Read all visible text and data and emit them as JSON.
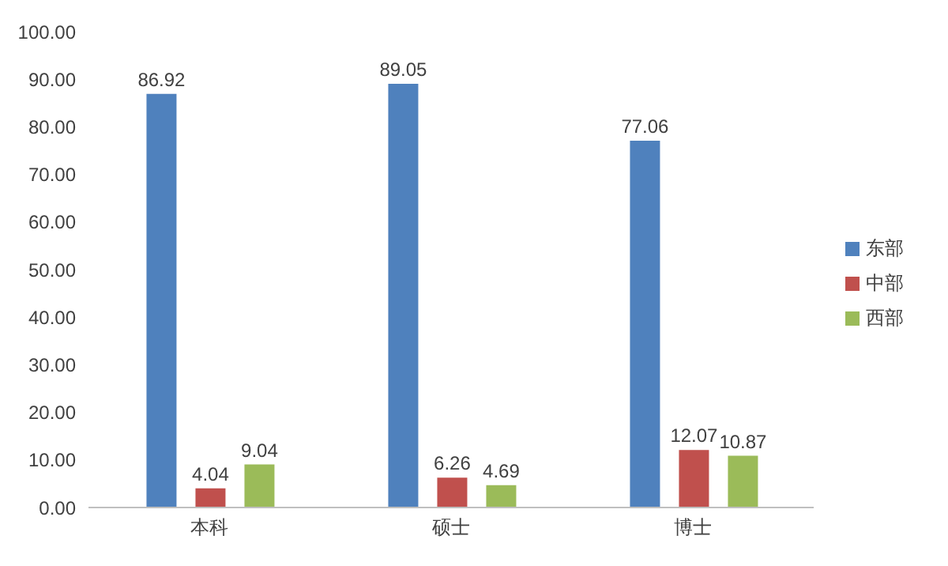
{
  "chart_data": {
    "type": "bar",
    "categories": [
      "本科",
      "硕士",
      "博士"
    ],
    "series": [
      {
        "name": "东部",
        "color": "#4f81bd",
        "values": [
          86.92,
          89.05,
          77.06
        ]
      },
      {
        "name": "中部",
        "color": "#c0504d",
        "values": [
          4.04,
          6.26,
          12.07
        ]
      },
      {
        "name": "西部",
        "color": "#9bbb59",
        "values": [
          9.04,
          4.69,
          10.87
        ]
      }
    ],
    "ylim": [
      0,
      100
    ],
    "yticks": [
      {
        "value": 0,
        "label": "0.00"
      },
      {
        "value": 10,
        "label": "10.00"
      },
      {
        "value": 20,
        "label": "20.00"
      },
      {
        "value": 30,
        "label": "30.00"
      },
      {
        "value": 40,
        "label": "40.00"
      },
      {
        "value": 50,
        "label": "50.00"
      },
      {
        "value": 60,
        "label": "60.00"
      },
      {
        "value": 70,
        "label": "70.00"
      },
      {
        "value": 80,
        "label": "80.00"
      },
      {
        "value": 90,
        "label": "90.00"
      },
      {
        "value": 100,
        "label": "100.00"
      }
    ],
    "data_labels": true,
    "legend": "right",
    "grid": false
  }
}
